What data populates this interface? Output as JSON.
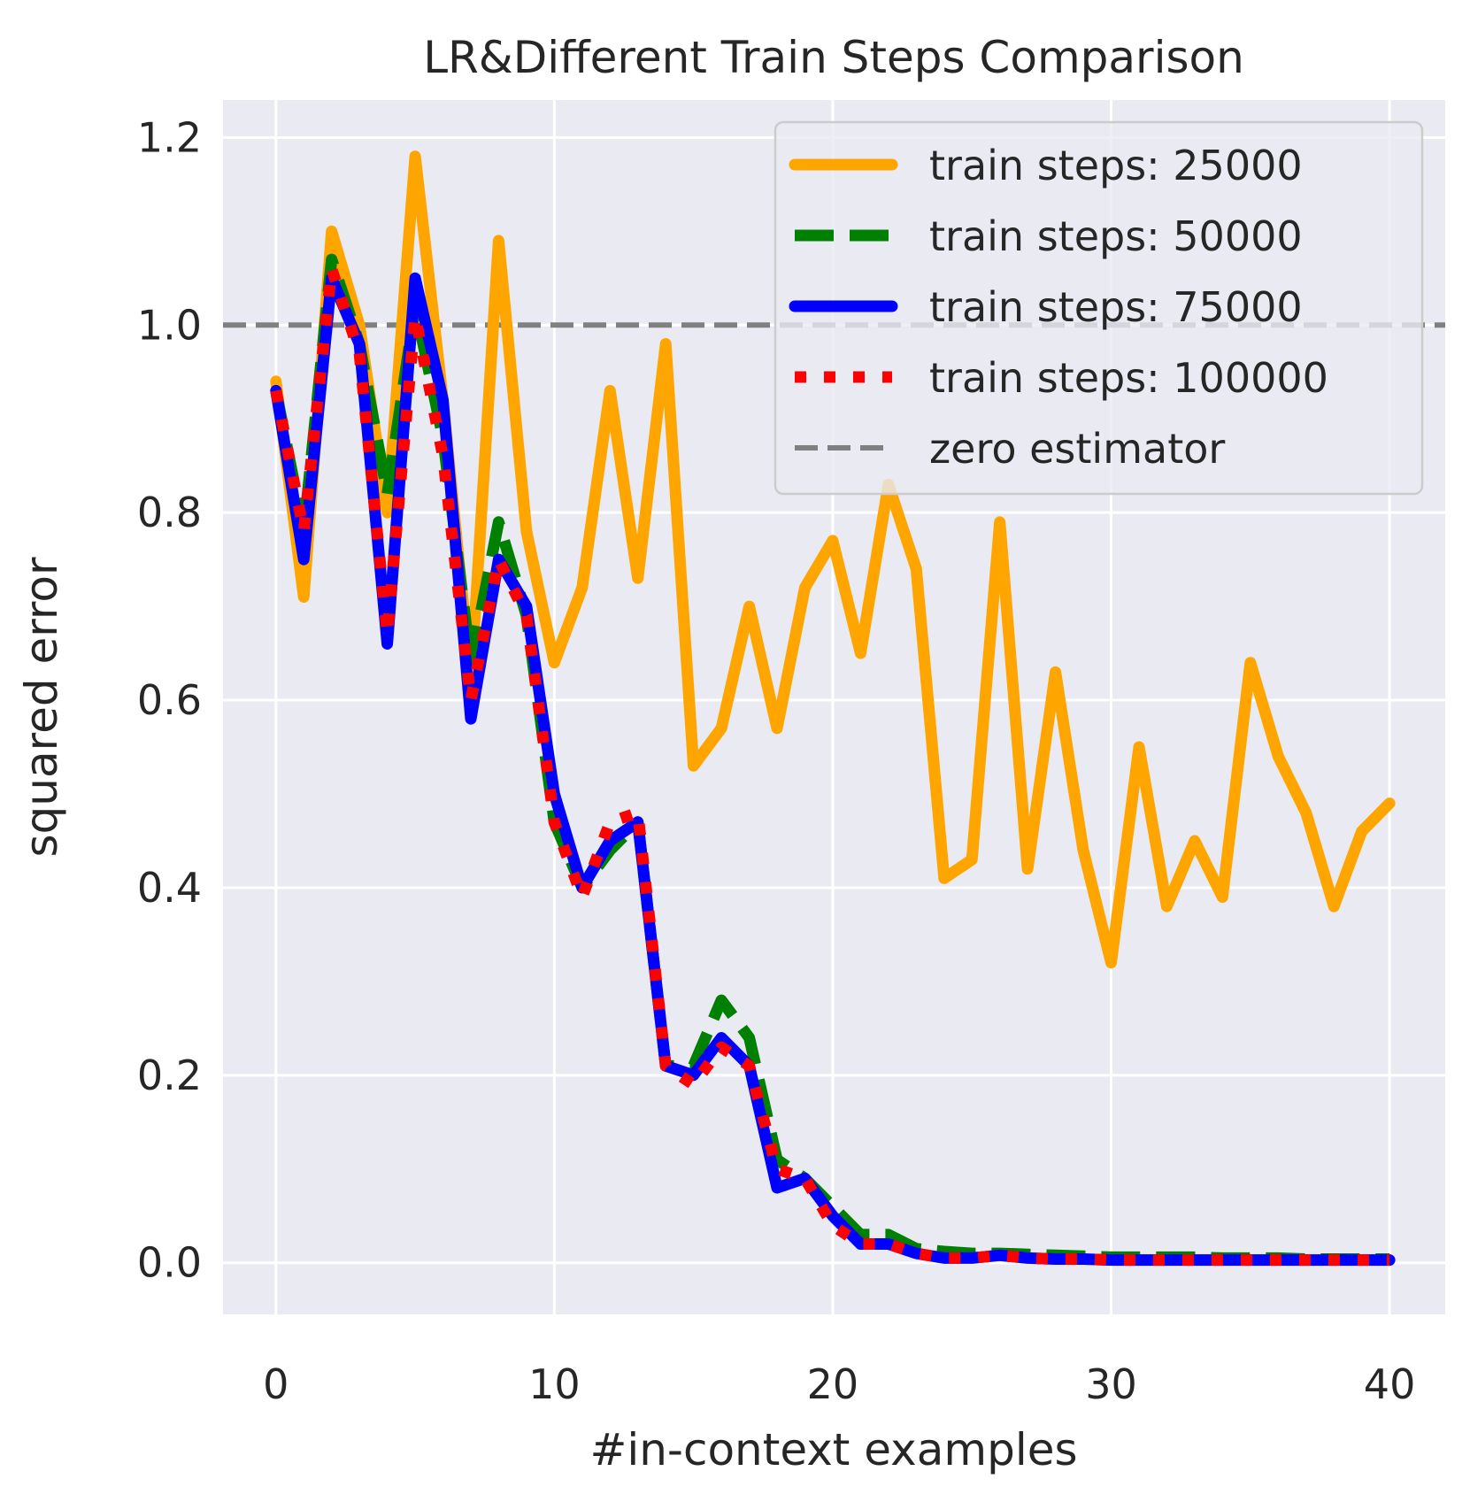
{
  "chart_data": {
    "type": "line",
    "title": "LR&Different Train Steps Comparison",
    "xlabel": "#in-context examples",
    "ylabel": "squared error",
    "xlim": [
      -1.9,
      42.0
    ],
    "ylim": [
      -0.055,
      1.24
    ],
    "xticks": [
      0,
      10,
      20,
      30,
      40
    ],
    "xtick_labels": [
      "0",
      "10",
      "20",
      "30",
      "40"
    ],
    "yticks": [
      0.0,
      0.2,
      0.4,
      0.6,
      0.8,
      1.0,
      1.2
    ],
    "ytick_labels": [
      "0.0",
      "0.2",
      "0.4",
      "0.6",
      "0.8",
      "1.0",
      "1.2"
    ],
    "grid": true,
    "legend_position": "top-right",
    "x": [
      0,
      1,
      2,
      3,
      4,
      5,
      6,
      7,
      8,
      9,
      10,
      11,
      12,
      13,
      14,
      15,
      16,
      17,
      18,
      19,
      20,
      21,
      22,
      23,
      24,
      25,
      26,
      27,
      28,
      29,
      30,
      31,
      32,
      33,
      34,
      35,
      36,
      37,
      38,
      39,
      40
    ],
    "series": [
      {
        "name": "train steps: 25000",
        "color": "#FFA500",
        "style": "solid",
        "values": [
          0.94,
          0.71,
          1.1,
          1.0,
          0.8,
          1.18,
          0.92,
          0.62,
          1.09,
          0.78,
          0.64,
          0.72,
          0.93,
          0.73,
          0.98,
          0.53,
          0.57,
          0.7,
          0.57,
          0.72,
          0.77,
          0.65,
          0.83,
          0.74,
          0.41,
          0.43,
          0.79,
          0.42,
          0.63,
          0.44,
          0.32,
          0.55,
          0.38,
          0.45,
          0.39,
          0.64,
          0.54,
          0.48,
          0.38,
          0.46,
          0.49
        ]
      },
      {
        "name": "train steps: 50000",
        "color": "#008000",
        "style": "dashed",
        "values": [
          0.93,
          0.78,
          1.07,
          0.98,
          0.82,
          1.02,
          0.88,
          0.64,
          0.79,
          0.69,
          0.47,
          0.4,
          0.44,
          0.47,
          0.21,
          0.21,
          0.28,
          0.24,
          0.11,
          0.09,
          0.06,
          0.03,
          0.03,
          0.015,
          0.012,
          0.01,
          0.01,
          0.009,
          0.008,
          0.007,
          0.006,
          0.006,
          0.006,
          0.006,
          0.005,
          0.005,
          0.005,
          0.004,
          0.004,
          0.004,
          0.004
        ]
      },
      {
        "name": "train steps: 75000",
        "color": "#0000FF",
        "style": "solid",
        "values": [
          0.93,
          0.75,
          1.05,
          0.98,
          0.66,
          1.05,
          0.92,
          0.58,
          0.75,
          0.7,
          0.5,
          0.4,
          0.45,
          0.47,
          0.21,
          0.2,
          0.24,
          0.21,
          0.08,
          0.09,
          0.05,
          0.02,
          0.02,
          0.01,
          0.005,
          0.005,
          0.008,
          0.005,
          0.004,
          0.004,
          0.003,
          0.003,
          0.003,
          0.003,
          0.003,
          0.003,
          0.003,
          0.003,
          0.003,
          0.003,
          0.003
        ]
      },
      {
        "name": "train steps: 100000",
        "color": "#FF0000",
        "style": "dotted",
        "values": [
          0.93,
          0.78,
          1.06,
          0.97,
          0.67,
          1.01,
          0.86,
          0.6,
          0.75,
          0.69,
          0.47,
          0.39,
          0.47,
          0.48,
          0.21,
          0.19,
          0.23,
          0.21,
          0.1,
          0.09,
          0.04,
          0.02,
          0.02,
          0.01,
          0.005,
          0.005,
          0.008,
          0.005,
          0.004,
          0.004,
          0.003,
          0.003,
          0.003,
          0.003,
          0.003,
          0.003,
          0.003,
          0.003,
          0.003,
          0.003,
          0.003
        ]
      }
    ],
    "reference_line": {
      "name": "zero estimator",
      "y": 1.0,
      "color": "#808080",
      "style": "dashed"
    }
  }
}
